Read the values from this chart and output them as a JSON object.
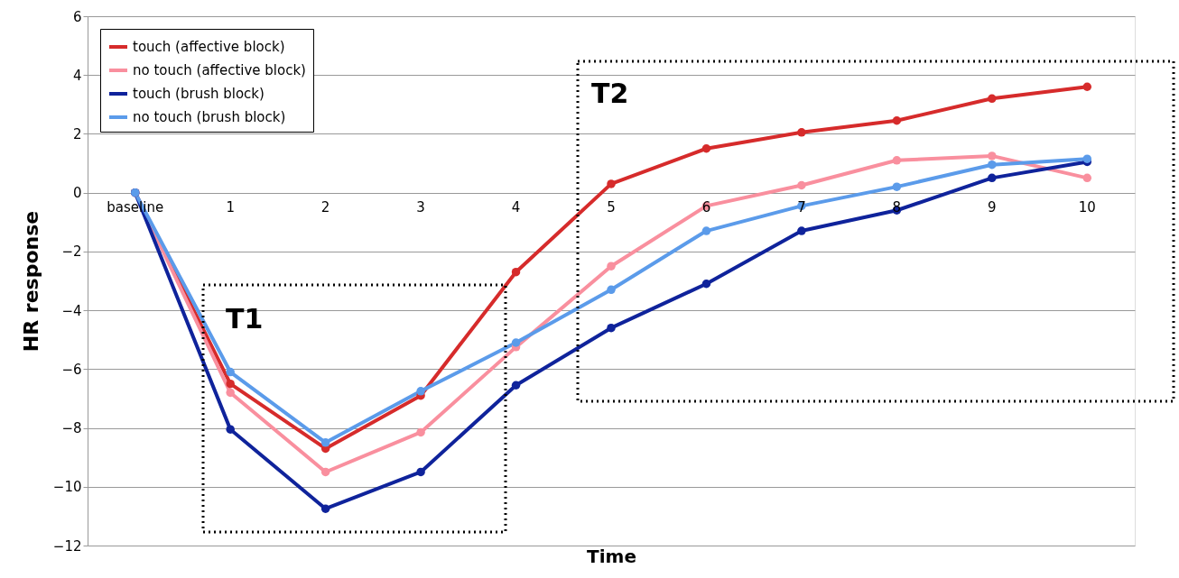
{
  "chart_data": {
    "type": "line",
    "xlabel": "Time",
    "ylabel": "HR response",
    "categories": [
      "baseline",
      "1",
      "2",
      "3",
      "4",
      "5",
      "6",
      "7",
      "8",
      "9",
      "10"
    ],
    "series": [
      {
        "name": "touch (affective block)",
        "color": "#d62b2b",
        "values": [
          0,
          -6.5,
          -8.7,
          -6.9,
          -2.7,
          0.3,
          1.5,
          2.05,
          2.45,
          3.2,
          3.6
        ]
      },
      {
        "name": "no touch (affective block)",
        "color": "#f98f9e",
        "values": [
          0,
          -6.8,
          -9.5,
          -8.15,
          -5.25,
          -2.5,
          -0.45,
          0.25,
          1.1,
          1.25,
          0.5
        ]
      },
      {
        "name": "touch (brush block)",
        "color": "#0f239b",
        "values": [
          0,
          -8.05,
          -10.75,
          -9.5,
          -6.55,
          -4.6,
          -3.1,
          -1.3,
          -0.6,
          0.5,
          1.05
        ]
      },
      {
        "name": "no touch (brush block)",
        "color": "#5b9bea",
        "values": [
          0,
          -6.1,
          -8.5,
          -6.75,
          -5.1,
          -3.3,
          -1.3,
          -0.45,
          0.2,
          0.95,
          1.15
        ]
      }
    ],
    "ylim": [
      -12,
      6
    ],
    "yticks": [
      -12,
      -10,
      -8,
      -6,
      -4,
      -2,
      0,
      2,
      4,
      6
    ],
    "annotations": [
      "T1",
      "T2"
    ],
    "grid": "y",
    "legend": "top left",
    "marker": "circle",
    "line_style": "solid"
  }
}
